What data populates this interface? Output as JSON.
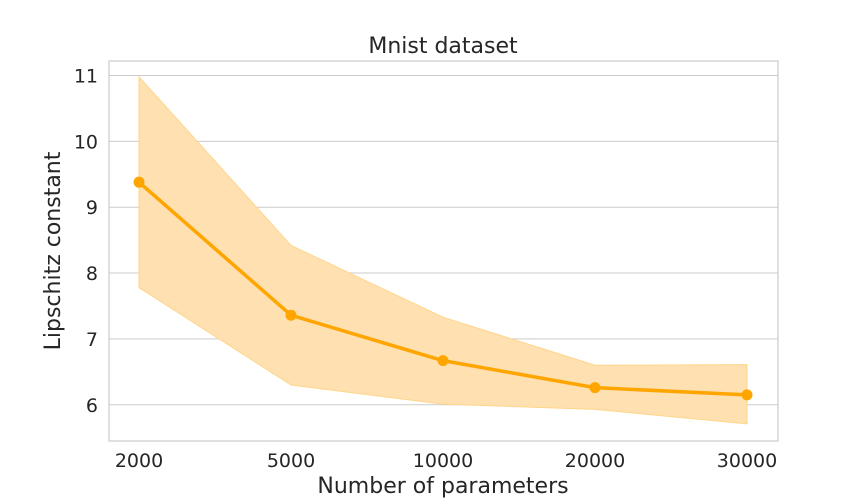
{
  "chart_data": {
    "type": "line",
    "title": "Mnist dataset",
    "xlabel": "Number of parameters",
    "ylabel": "Lipschitz constant",
    "categories": [
      "2000",
      "5000",
      "10000",
      "20000",
      "30000"
    ],
    "series": [
      {
        "values": [
          9.38,
          7.36,
          6.67,
          6.26,
          6.15
        ],
        "lower": [
          7.78,
          6.3,
          6.01,
          5.93,
          5.71
        ],
        "upper": [
          10.98,
          8.42,
          7.33,
          6.6,
          6.61
        ],
        "color": "#ffa500",
        "band_color": "#ffe0b0"
      }
    ],
    "yticks": [
      6,
      7,
      8,
      9,
      10,
      11
    ],
    "ylim": [
      5.45,
      11.22
    ],
    "grid": "horizontal",
    "legend": "none"
  }
}
